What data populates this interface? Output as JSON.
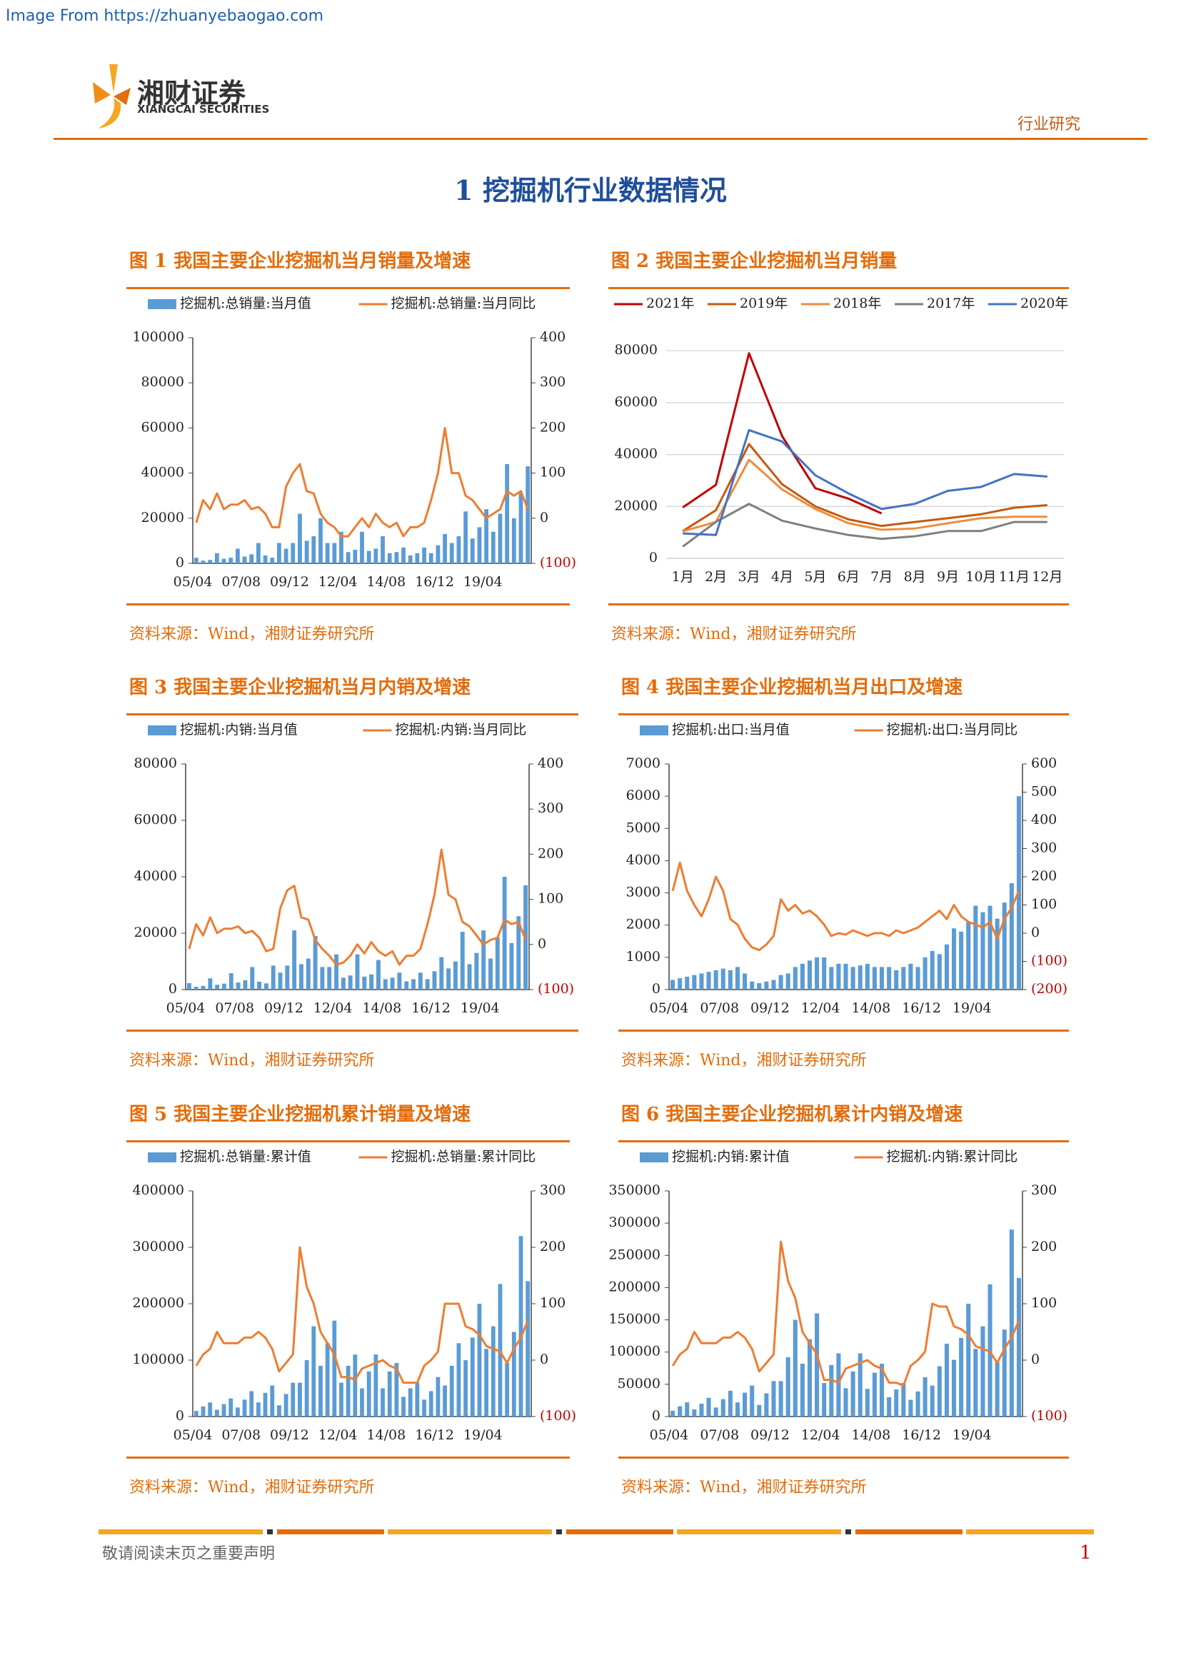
{
  "header": {
    "watermark": "Image From https://zhuanyebaogao.com",
    "logo_cn": "湘财证券",
    "logo_en": "XIANGCAI SECURITIES",
    "category": "行业研究"
  },
  "section_title": "1 挖掘机行业数据情况",
  "chart_data": [
    {
      "type": "combo",
      "title": "图 1 我国主要企业挖掘机当月销量及增速",
      "source": "资料来源：Wind，湘财证券研究所",
      "categories": [
        "05/04",
        null,
        null,
        null,
        null,
        null,
        null,
        "07/08",
        null,
        null,
        null,
        null,
        null,
        null,
        "09/12",
        null,
        null,
        null,
        null,
        null,
        null,
        "12/04",
        null,
        null,
        null,
        null,
        null,
        null,
        "14/08",
        null,
        null,
        null,
        null,
        null,
        null,
        "16/12",
        null,
        null,
        null,
        null,
        null,
        null,
        "19/04",
        null,
        null,
        null,
        null,
        null,
        null
      ],
      "series": [
        {
          "name": "挖掘机:总销量:当月值",
          "type": "bar",
          "color": "#5b9bd5",
          "values": [
            2500,
            1200,
            1500,
            4500,
            2000,
            2500,
            6500,
            3000,
            4000,
            9000,
            3500,
            2500,
            9000,
            6500,
            9000,
            22000,
            10000,
            12000,
            20000,
            9000,
            9000,
            14000,
            5000,
            6000,
            14000,
            5500,
            6500,
            12000,
            4500,
            5000,
            7000,
            3500,
            4500,
            7000,
            4500,
            8000,
            13000,
            9000,
            12000,
            23000,
            11000,
            16000,
            24000,
            14000,
            22000,
            44000,
            20000,
            31000,
            43000
          ]
        },
        {
          "name": "挖掘机:总销量:当月同比",
          "type": "line",
          "axis": "y2",
          "color": "#ed7d31",
          "values": [
            -10,
            40,
            20,
            55,
            20,
            30,
            30,
            40,
            20,
            25,
            10,
            -20,
            -20,
            70,
            100,
            120,
            60,
            55,
            10,
            -10,
            -20,
            -40,
            -40,
            -20,
            0,
            -20,
            10,
            -10,
            -20,
            -10,
            -40,
            -20,
            -20,
            -10,
            40,
            100,
            200,
            100,
            100,
            50,
            40,
            20,
            0,
            10,
            20,
            60,
            50,
            60,
            20
          ]
        }
      ],
      "ylim": [
        0,
        100000
      ],
      "yticks": [
        0,
        20000,
        40000,
        60000,
        80000,
        100000
      ],
      "y2lim": [
        -100,
        400
      ],
      "y2ticks": [
        {
          "value": -100,
          "label": "(100)"
        },
        0,
        100,
        200,
        300,
        400
      ]
    },
    {
      "type": "line",
      "title": "图 2 我国主要企业挖掘机当月销量",
      "source": "资料来源：Wind，湘财证券研究所",
      "categories": [
        "1月",
        "2月",
        "3月",
        "4月",
        "5月",
        "6月",
        "7月",
        "8月",
        "9月",
        "10月",
        "11月",
        "12月"
      ],
      "series": [
        {
          "name": "2021年",
          "color": "#c00000",
          "values": [
            19600,
            28300,
            79000,
            47000,
            27000,
            23000,
            17300,
            null,
            null,
            null,
            null,
            null
          ]
        },
        {
          "name": "2019年",
          "color": "#c55a11",
          "values": [
            10500,
            18500,
            44000,
            28500,
            20000,
            15000,
            12500,
            14000,
            15500,
            17000,
            19500,
            20500
          ]
        },
        {
          "name": "2018年",
          "color": "#f08c3a",
          "values": [
            10400,
            14000,
            38000,
            26500,
            19000,
            13500,
            11000,
            11500,
            13500,
            15500,
            16000,
            16000
          ]
        },
        {
          "name": "2017年",
          "color": "#7f7f7f",
          "values": [
            4500,
            14000,
            21000,
            14500,
            11500,
            9000,
            7500,
            8500,
            10500,
            10500,
            14000,
            14000
          ]
        },
        {
          "name": "2020年",
          "color": "#4472c4",
          "values": [
            9600,
            9000,
            49400,
            45000,
            32000,
            25000,
            19000,
            21000,
            26000,
            27500,
            32500,
            31500
          ]
        }
      ],
      "ylim": [
        0,
        85000
      ],
      "yticks": [
        0,
        20000,
        40000,
        60000,
        80000
      ],
      "grid": true
    },
    {
      "type": "combo",
      "title": "图 3 我国主要企业挖掘机当月内销及增速",
      "source": "资料来源：Wind，湘财证券研究所",
      "categories": [
        "05/04",
        null,
        null,
        null,
        null,
        null,
        null,
        "07/08",
        null,
        null,
        null,
        null,
        null,
        null,
        "09/12",
        null,
        null,
        null,
        null,
        null,
        null,
        "12/04",
        null,
        null,
        null,
        null,
        null,
        null,
        "14/08",
        null,
        null,
        null,
        null,
        null,
        null,
        "16/12",
        null,
        null,
        null,
        null,
        null,
        null,
        "19/04",
        null,
        null,
        null,
        null,
        null,
        null
      ],
      "series": [
        {
          "name": "挖掘机:内销:当月值",
          "type": "bar",
          "color": "#5b9bd5",
          "values": [
            2300,
            1000,
            1300,
            4000,
            1700,
            2100,
            5800,
            2500,
            3300,
            8000,
            2800,
            2200,
            8500,
            6000,
            8500,
            21000,
            9000,
            11000,
            19000,
            8000,
            8000,
            12500,
            4200,
            5000,
            12500,
            4600,
            5400,
            10500,
            3700,
            4200,
            6000,
            2900,
            3700,
            6000,
            3700,
            6500,
            11500,
            7500,
            10000,
            20500,
            9000,
            13000,
            21000,
            11000,
            18500,
            40000,
            16500,
            26000,
            37000
          ]
        },
        {
          "name": "挖掘机:内销:当月同比",
          "type": "line",
          "axis": "y2",
          "color": "#ed7d31",
          "values": [
            -10,
            45,
            20,
            60,
            25,
            35,
            35,
            40,
            25,
            30,
            15,
            -15,
            -10,
            80,
            120,
            130,
            60,
            55,
            10,
            -10,
            -25,
            -45,
            -40,
            -25,
            0,
            -20,
            5,
            -15,
            -25,
            -15,
            -45,
            -25,
            -25,
            -10,
            45,
            110,
            210,
            110,
            100,
            50,
            40,
            20,
            0,
            10,
            15,
            55,
            45,
            50,
            10
          ]
        }
      ],
      "ylim": [
        0,
        80000
      ],
      "yticks": [
        0,
        20000,
        40000,
        60000,
        80000
      ],
      "y2lim": [
        -100,
        400
      ],
      "y2ticks": [
        {
          "value": -100,
          "label": "(100)"
        },
        0,
        100,
        200,
        300,
        400
      ]
    },
    {
      "type": "combo",
      "title": "图 4 我国主要企业挖掘机当月出口及增速",
      "source": "资料来源：Wind，湘财证券研究所",
      "categories": [
        "05/04",
        null,
        null,
        null,
        null,
        null,
        null,
        "07/08",
        null,
        null,
        null,
        null,
        null,
        null,
        "09/12",
        null,
        null,
        null,
        null,
        null,
        null,
        "12/04",
        null,
        null,
        null,
        null,
        null,
        null,
        "14/08",
        null,
        null,
        null,
        null,
        null,
        null,
        "16/12",
        null,
        null,
        null,
        null,
        null,
        null,
        "19/04",
        null,
        null,
        null,
        null,
        null,
        null
      ],
      "series": [
        {
          "name": "挖掘机:出口:当月值",
          "type": "bar",
          "color": "#5b9bd5",
          "values": [
            300,
            350,
            400,
            450,
            500,
            550,
            600,
            650,
            600,
            700,
            500,
            250,
            200,
            250,
            300,
            450,
            500,
            700,
            800,
            900,
            1000,
            1000,
            700,
            800,
            800,
            700,
            750,
            800,
            700,
            700,
            700,
            600,
            700,
            800,
            700,
            1000,
            1200,
            1100,
            1400,
            1900,
            1800,
            2100,
            2600,
            2400,
            2600,
            2200,
            2700,
            3300,
            6000
          ]
        },
        {
          "name": "挖掘机:出口:当月同比",
          "type": "line",
          "axis": "y2",
          "color": "#ed7d31",
          "values": [
            150,
            250,
            150,
            100,
            60,
            120,
            200,
            150,
            50,
            30,
            -20,
            -50,
            -60,
            -40,
            -10,
            120,
            80,
            100,
            70,
            80,
            60,
            30,
            -10,
            0,
            -5,
            10,
            0,
            -10,
            0,
            0,
            -10,
            10,
            0,
            10,
            20,
            40,
            60,
            80,
            50,
            100,
            60,
            40,
            30,
            20,
            40,
            -20,
            50,
            90,
            150
          ]
        }
      ],
      "ylim": [
        0,
        7000
      ],
      "yticks": [
        0,
        1000,
        2000,
        3000,
        4000,
        5000,
        6000,
        7000
      ],
      "y2lim": [
        -200,
        600
      ],
      "y2ticks": [
        {
          "value": -200,
          "label": "(200)"
        },
        {
          "value": -100,
          "label": "(100)"
        },
        0,
        100,
        200,
        300,
        400,
        500,
        600
      ]
    },
    {
      "type": "combo",
      "title": "图 5 我国主要企业挖掘机累计销量及增速",
      "source": "资料来源：Wind，湘财证券研究所",
      "categories": [
        "05/04",
        null,
        null,
        null,
        null,
        null,
        null,
        "07/08",
        null,
        null,
        null,
        null,
        null,
        null,
        "09/12",
        null,
        null,
        null,
        null,
        null,
        null,
        "12/04",
        null,
        null,
        null,
        null,
        null,
        null,
        "14/08",
        null,
        null,
        null,
        null,
        null,
        null,
        "16/12",
        null,
        null,
        null,
        null,
        null,
        null,
        "19/04",
        null,
        null,
        null,
        null,
        null,
        null
      ],
      "series": [
        {
          "name": "挖掘机:总销量:累计值",
          "type": "bar",
          "color": "#5b9bd5",
          "values": [
            10000,
            18000,
            25000,
            12000,
            22000,
            32000,
            16000,
            30000,
            45000,
            25000,
            42000,
            55000,
            20000,
            40000,
            60000,
            60000,
            100000,
            160000,
            90000,
            130000,
            170000,
            60000,
            90000,
            110000,
            50000,
            80000,
            110000,
            50000,
            80000,
            95000,
            35000,
            50000,
            60000,
            30000,
            45000,
            70000,
            55000,
            90000,
            130000,
            100000,
            140000,
            200000,
            120000,
            160000,
            235000,
            95000,
            150000,
            320000,
            240000
          ]
        },
        {
          "name": "挖掘机:总销量:累计同比",
          "type": "line",
          "axis": "y2",
          "color": "#ed7d31",
          "values": [
            -10,
            10,
            20,
            50,
            30,
            30,
            30,
            40,
            40,
            50,
            40,
            20,
            -20,
            -5,
            10,
            200,
            130,
            100,
            50,
            30,
            10,
            -30,
            -30,
            -35,
            -15,
            -10,
            -5,
            0,
            -10,
            -15,
            -40,
            -40,
            -40,
            -10,
            0,
            15,
            100,
            100,
            100,
            60,
            55,
            45,
            25,
            20,
            15,
            -5,
            20,
            40,
            70
          ]
        }
      ],
      "ylim": [
        0,
        400000
      ],
      "yticks": [
        0,
        100000,
        200000,
        300000,
        400000
      ],
      "y2lim": [
        -100,
        300
      ],
      "y2ticks": [
        {
          "value": -100,
          "label": "(100)"
        },
        0,
        100,
        200,
        300
      ]
    },
    {
      "type": "combo",
      "title": "图 6 我国主要企业挖掘机累计内销及增速",
      "source": "资料来源：Wind，湘财证券研究所",
      "categories": [
        "05/04",
        null,
        null,
        null,
        null,
        null,
        null,
        "07/08",
        null,
        null,
        null,
        null,
        null,
        null,
        "09/12",
        null,
        null,
        null,
        null,
        null,
        null,
        "12/04",
        null,
        null,
        null,
        null,
        null,
        null,
        "14/08",
        null,
        null,
        null,
        null,
        null,
        null,
        "16/12",
        null,
        null,
        null,
        null,
        null,
        null,
        "19/04",
        null,
        null,
        null,
        null,
        null,
        null
      ],
      "series": [
        {
          "name": "挖掘机:内销:累计值",
          "type": "bar",
          "color": "#5b9bd5",
          "values": [
            9000,
            16000,
            22000,
            11000,
            20000,
            29000,
            14000,
            27000,
            40000,
            22000,
            37000,
            48000,
            18000,
            36000,
            55000,
            55000,
            92000,
            150000,
            82000,
            120000,
            160000,
            52000,
            80000,
            98000,
            44000,
            70000,
            98000,
            43000,
            68000,
            82000,
            30000,
            42000,
            52000,
            26000,
            39000,
            61000,
            48000,
            78000,
            113000,
            88000,
            122000,
            175000,
            105000,
            140000,
            205000,
            85000,
            135000,
            290000,
            215000
          ]
        },
        {
          "name": "挖掘机:内销:累计同比",
          "type": "line",
          "axis": "y2",
          "color": "#ed7d31",
          "values": [
            -10,
            10,
            20,
            50,
            30,
            30,
            30,
            40,
            40,
            50,
            40,
            20,
            -20,
            -5,
            10,
            210,
            140,
            110,
            50,
            30,
            10,
            -35,
            -35,
            -40,
            -15,
            -10,
            -5,
            0,
            -10,
            -15,
            -40,
            -40,
            -45,
            -10,
            0,
            15,
            100,
            95,
            95,
            60,
            55,
            45,
            25,
            20,
            15,
            -5,
            20,
            40,
            70
          ]
        }
      ],
      "ylim": [
        0,
        350000
      ],
      "yticks": [
        0,
        50000,
        100000,
        150000,
        200000,
        250000,
        300000,
        350000
      ],
      "y2lim": [
        -100,
        300
      ],
      "y2ticks": [
        {
          "value": -100,
          "label": "(100)"
        },
        0,
        100,
        200,
        300
      ]
    }
  ],
  "footer": {
    "disclaimer": "敬请阅读末页之重要声明",
    "page": 1
  }
}
